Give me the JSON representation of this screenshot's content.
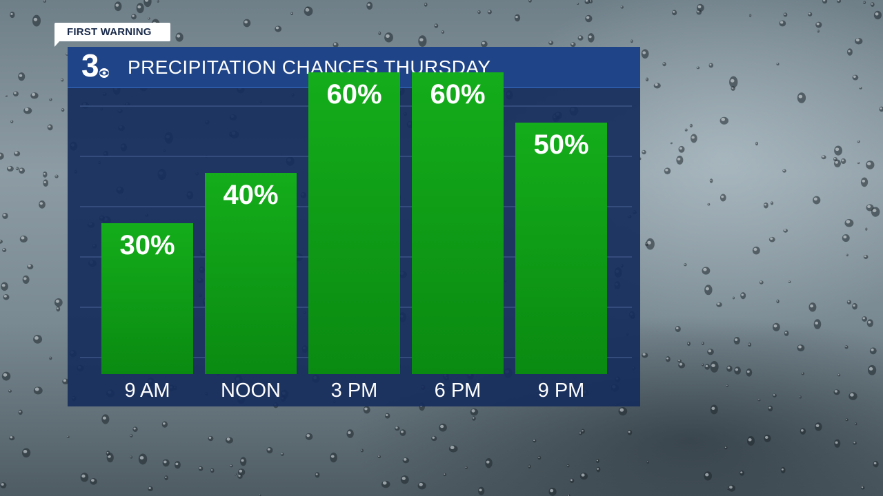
{
  "badge": {
    "text": "FIRST WARNING"
  },
  "logo": {
    "number": "3"
  },
  "colors": {
    "panel": "#162c5c",
    "header": "#1f4487",
    "bar_top": "#13a81a",
    "bar_bottom": "#0b8d12",
    "text": "#ffffff"
  },
  "chart_data": {
    "type": "bar",
    "title": "PRECIPITATION CHANCES THURSDAY",
    "categories": [
      "9 AM",
      "NOON",
      "3 PM",
      "6 PM",
      "9 PM"
    ],
    "values": [
      30,
      40,
      60,
      60,
      50
    ],
    "data_labels": [
      "30%",
      "40%",
      "60%",
      "60%",
      "50%"
    ],
    "ylim": [
      0,
      100
    ],
    "unit": "%",
    "grid": true,
    "legend": false
  }
}
